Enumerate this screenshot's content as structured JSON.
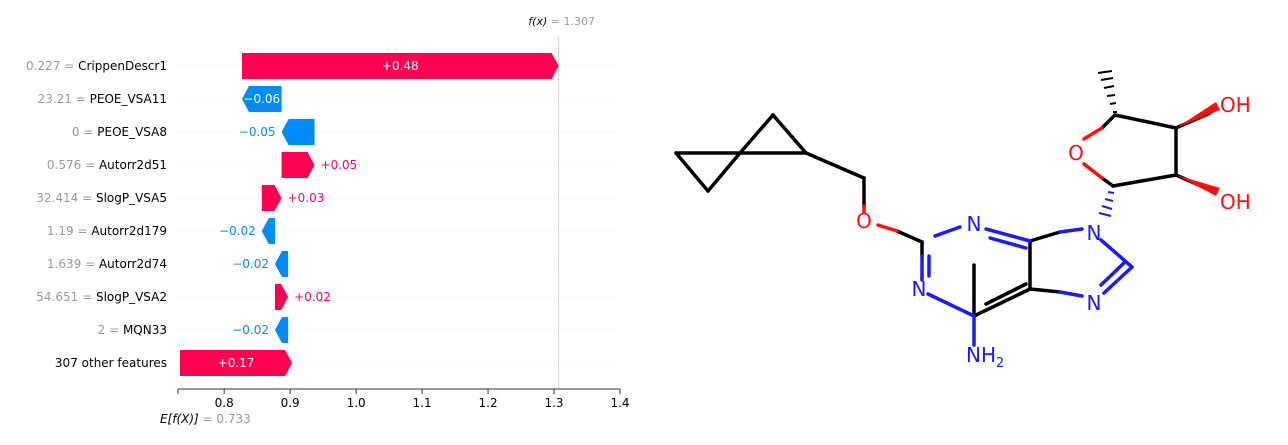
{
  "chart_data": {
    "type": "waterfall",
    "fx_label": "f(x)",
    "fx_value": "1.307",
    "base_label": "E[f(X)]",
    "base_value": "0.733",
    "xlim": [
      0.73,
      1.4
    ],
    "x_ticks": [
      "0.8",
      "0.9",
      "1.0",
      "1.1",
      "1.2",
      "1.3",
      "1.4"
    ],
    "colors": {
      "positive": "#ff0051",
      "negative": "#008bfb",
      "neutral_text": "#999999",
      "label_text": "#000000"
    },
    "features": [
      {
        "value": "0.227",
        "name": "CrippenDescr1",
        "start": 0.827,
        "end": 1.307,
        "label": "+0.48"
      },
      {
        "value": "23.21",
        "name": "PEOE_VSA11",
        "start": 0.887,
        "end": 0.827,
        "label": "−0.06"
      },
      {
        "value": "0",
        "name": "PEOE_VSA8",
        "start": 0.937,
        "end": 0.887,
        "label": "−0.05"
      },
      {
        "value": "0.576",
        "name": "Autorr2d51",
        "start": 0.887,
        "end": 0.937,
        "label": "+0.05"
      },
      {
        "value": "32.414",
        "name": "SlogP_VSA5",
        "start": 0.857,
        "end": 0.887,
        "label": "+0.03"
      },
      {
        "value": "1.19",
        "name": "Autorr2d179",
        "start": 0.877,
        "end": 0.857,
        "label": "−0.02"
      },
      {
        "value": "1.639",
        "name": "Autorr2d74",
        "start": 0.897,
        "end": 0.877,
        "label": "−0.02"
      },
      {
        "value": "54.651",
        "name": "SlogP_VSA2",
        "start": 0.877,
        "end": 0.897,
        "label": "+0.02"
      },
      {
        "value": "2",
        "name": "MQN33",
        "start": 0.897,
        "end": 0.877,
        "label": "−0.02"
      },
      {
        "value": "",
        "name": "307 other features",
        "start": 0.733,
        "end": 0.903,
        "label": "+0.17"
      }
    ]
  },
  "molecule": {
    "labels": {
      "oh_top": "OH",
      "oh_bottom": "OH",
      "o_ring": "O",
      "o_ether": "O",
      "n_pyr_top": "N",
      "n_pyr_left": "N",
      "n9": "N",
      "n7": "N",
      "nh2": "NH",
      "nh2_sub": "2"
    },
    "colors": {
      "bond": "#000000",
      "nitrogen": "#1a1aff",
      "oxygen": "#ff0d0d"
    }
  }
}
